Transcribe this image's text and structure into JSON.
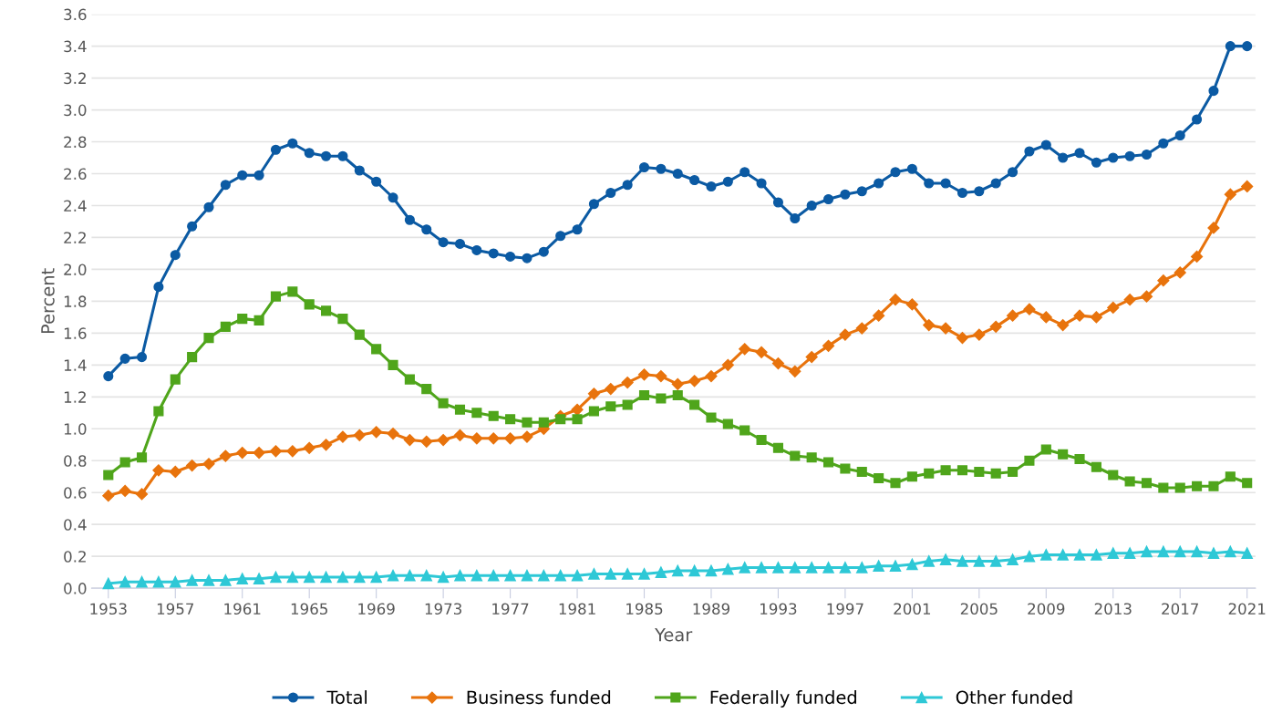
{
  "chart_data": {
    "type": "line",
    "xlabel": "Year",
    "ylabel": "Percent",
    "x": [
      1953,
      1954,
      1955,
      1956,
      1957,
      1958,
      1959,
      1960,
      1961,
      1962,
      1963,
      1964,
      1965,
      1966,
      1967,
      1968,
      1969,
      1970,
      1971,
      1972,
      1973,
      1974,
      1975,
      1976,
      1977,
      1978,
      1979,
      1980,
      1981,
      1982,
      1983,
      1984,
      1985,
      1986,
      1987,
      1988,
      1989,
      1990,
      1991,
      1992,
      1993,
      1994,
      1995,
      1996,
      1997,
      1998,
      1999,
      2000,
      2001,
      2002,
      2003,
      2004,
      2005,
      2006,
      2007,
      2008,
      2009,
      2010,
      2011,
      2012,
      2013,
      2014,
      2015,
      2016,
      2017,
      2018,
      2019,
      2020,
      2021
    ],
    "series": [
      {
        "name": "Total",
        "color": "#0b5aa3",
        "marker": "circle",
        "values": [
          1.33,
          1.44,
          1.45,
          1.89,
          2.09,
          2.27,
          2.39,
          2.53,
          2.59,
          2.59,
          2.75,
          2.79,
          2.73,
          2.71,
          2.71,
          2.62,
          2.55,
          2.45,
          2.31,
          2.25,
          2.17,
          2.16,
          2.12,
          2.1,
          2.08,
          2.07,
          2.11,
          2.21,
          2.25,
          2.41,
          2.48,
          2.53,
          2.64,
          2.63,
          2.6,
          2.56,
          2.52,
          2.55,
          2.61,
          2.54,
          2.42,
          2.32,
          2.4,
          2.44,
          2.47,
          2.49,
          2.54,
          2.61,
          2.63,
          2.54,
          2.54,
          2.48,
          2.49,
          2.54,
          2.61,
          2.74,
          2.78,
          2.7,
          2.73,
          2.67,
          2.7,
          2.71,
          2.72,
          2.79,
          2.84,
          2.94,
          3.12,
          3.4,
          3.4
        ]
      },
      {
        "name": "Business funded",
        "color": "#e8730c",
        "marker": "diamond",
        "values": [
          0.58,
          0.61,
          0.59,
          0.74,
          0.73,
          0.77,
          0.78,
          0.83,
          0.85,
          0.85,
          0.86,
          0.86,
          0.88,
          0.9,
          0.95,
          0.96,
          0.98,
          0.97,
          0.93,
          0.92,
          0.93,
          0.96,
          0.94,
          0.94,
          0.94,
          0.95,
          1.0,
          1.08,
          1.12,
          1.22,
          1.25,
          1.29,
          1.34,
          1.33,
          1.28,
          1.3,
          1.33,
          1.4,
          1.5,
          1.48,
          1.41,
          1.36,
          1.45,
          1.52,
          1.59,
          1.63,
          1.71,
          1.81,
          1.78,
          1.65,
          1.63,
          1.57,
          1.59,
          1.64,
          1.71,
          1.75,
          1.7,
          1.65,
          1.71,
          1.7,
          1.76,
          1.81,
          1.83,
          1.93,
          1.98,
          2.08,
          2.26,
          2.47,
          2.52
        ]
      },
      {
        "name": "Federally funded",
        "color": "#4fa51b",
        "marker": "square",
        "values": [
          0.71,
          0.79,
          0.82,
          1.11,
          1.31,
          1.45,
          1.57,
          1.64,
          1.69,
          1.68,
          1.83,
          1.86,
          1.78,
          1.74,
          1.69,
          1.59,
          1.5,
          1.4,
          1.31,
          1.25,
          1.16,
          1.12,
          1.1,
          1.08,
          1.06,
          1.04,
          1.04,
          1.06,
          1.06,
          1.11,
          1.14,
          1.15,
          1.21,
          1.19,
          1.21,
          1.15,
          1.07,
          1.03,
          0.99,
          0.93,
          0.88,
          0.83,
          0.82,
          0.79,
          0.75,
          0.73,
          0.69,
          0.66,
          0.7,
          0.72,
          0.74,
          0.74,
          0.73,
          0.72,
          0.73,
          0.8,
          0.87,
          0.84,
          0.81,
          0.76,
          0.71,
          0.67,
          0.66,
          0.63,
          0.63,
          0.64,
          0.64,
          0.7,
          0.66
        ]
      },
      {
        "name": "Other funded",
        "color": "#2ec8d6",
        "marker": "triangle",
        "values": [
          0.03,
          0.04,
          0.04,
          0.04,
          0.04,
          0.05,
          0.05,
          0.05,
          0.06,
          0.06,
          0.07,
          0.07,
          0.07,
          0.07,
          0.07,
          0.07,
          0.07,
          0.08,
          0.08,
          0.08,
          0.07,
          0.08,
          0.08,
          0.08,
          0.08,
          0.08,
          0.08,
          0.08,
          0.08,
          0.09,
          0.09,
          0.09,
          0.09,
          0.1,
          0.11,
          0.11,
          0.11,
          0.12,
          0.13,
          0.13,
          0.13,
          0.13,
          0.13,
          0.13,
          0.13,
          0.13,
          0.14,
          0.14,
          0.15,
          0.17,
          0.18,
          0.17,
          0.17,
          0.17,
          0.18,
          0.2,
          0.21,
          0.21,
          0.21,
          0.21,
          0.22,
          0.22,
          0.23,
          0.23,
          0.23,
          0.23,
          0.22,
          0.23,
          0.22
        ]
      }
    ],
    "xlim": [
      1952,
      2021.5
    ],
    "xticks": [
      1953,
      1957,
      1961,
      1965,
      1969,
      1973,
      1977,
      1981,
      1985,
      1989,
      1993,
      1997,
      2001,
      2005,
      2009,
      2013,
      2017,
      2021
    ],
    "ylim": [
      0,
      3.6
    ],
    "yticks": [
      {
        "value": 0,
        "label": "0.0"
      },
      {
        "value": 0.2,
        "label": "0.2"
      },
      {
        "value": 0.4,
        "label": "0.4"
      },
      {
        "value": 0.6,
        "label": "0.6"
      },
      {
        "value": 0.8,
        "label": "0.8"
      },
      {
        "value": 1.0,
        "label": "1.0"
      },
      {
        "value": 1.2,
        "label": "1.2"
      },
      {
        "value": 1.4,
        "label": "1.4"
      },
      {
        "value": 1.6,
        "label": "1.6"
      },
      {
        "value": 1.8,
        "label": "1.8"
      },
      {
        "value": 2.0,
        "label": "2.0"
      },
      {
        "value": 2.2,
        "label": "2.2"
      },
      {
        "value": 2.4,
        "label": "2.4"
      },
      {
        "value": 2.6,
        "label": "2.6"
      },
      {
        "value": 2.8,
        "label": "2.8"
      },
      {
        "value": 3.0,
        "label": "3.0"
      },
      {
        "value": 3.2,
        "label": "3.2"
      },
      {
        "value": 3.4,
        "label": "3.4"
      },
      {
        "value": 3.6,
        "label": "3.6"
      }
    ],
    "grid": "y",
    "legend": "bottom",
    "line_style": "solid"
  }
}
